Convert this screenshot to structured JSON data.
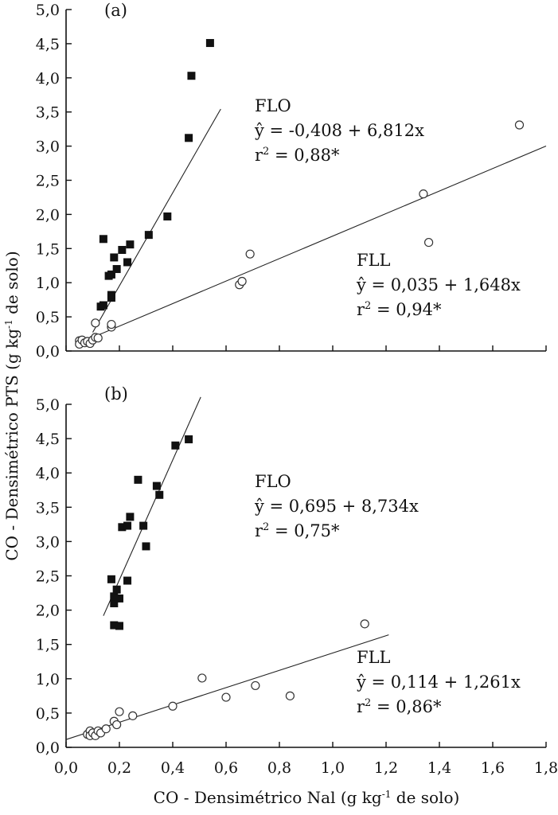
{
  "axes": {
    "ylabel": "CO - Densimétrico PTS (g kg-1 de solo)",
    "ylabel_parts": {
      "pre": "CO - Densimétrico PTS (g kg",
      "sup": "-1",
      "post": " de solo)"
    },
    "xlabel_parts": {
      "pre": "CO - Densimétrico Nal (g kg",
      "sup": "-1",
      "post": " de solo)"
    },
    "xticks": [
      "0,0",
      "0,2",
      "0,4",
      "0,6",
      "0,8",
      "1,0",
      "1,2",
      "1,4",
      "1,6",
      "1,8"
    ],
    "yticks": [
      "0,0",
      "0,5",
      "1,0",
      "1,5",
      "2,0",
      "2,5",
      "3,0",
      "3,5",
      "4,0",
      "4,5",
      "5,0"
    ]
  },
  "chart_data": [
    {
      "type": "scatter",
      "panel_label": "(a)",
      "xlabel": "CO - Densimétrico Nal (g kg-1 de solo)",
      "ylabel": "CO - Densimétrico PTS (g kg-1 de solo)",
      "xlim": [
        0,
        1.8
      ],
      "ylim": [
        0,
        5
      ],
      "series": [
        {
          "name": "FLO",
          "marker": "filled-square",
          "equation": "ŷ = -0,408 + 6,812x",
          "r2_label": "r² = 0,88*",
          "r2_parts": {
            "pre": "r",
            "sup": "2",
            "post": " = 0,88*"
          },
          "fit": {
            "intercept": -0.408,
            "slope": 6.812,
            "x_range": [
              0.1,
              0.58
            ]
          },
          "points": [
            [
              0.14,
              1.64
            ],
            [
              0.13,
              0.65
            ],
            [
              0.14,
              0.67
            ],
            [
              0.16,
              1.1
            ],
            [
              0.17,
              1.12
            ],
            [
              0.17,
              0.78
            ],
            [
              0.17,
              0.82
            ],
            [
              0.18,
              1.37
            ],
            [
              0.19,
              1.2
            ],
            [
              0.21,
              1.48
            ],
            [
              0.23,
              1.3
            ],
            [
              0.24,
              1.56
            ],
            [
              0.31,
              1.7
            ],
            [
              0.38,
              1.97
            ],
            [
              0.46,
              3.12
            ],
            [
              0.47,
              4.03
            ],
            [
              0.54,
              4.51
            ]
          ]
        },
        {
          "name": "FLL",
          "marker": "open-circle",
          "equation": "ŷ = 0,035 + 1,648x",
          "r2_label": "r² = 0,94*",
          "r2_parts": {
            "pre": "r",
            "sup": "2",
            "post": " = 0,94*"
          },
          "fit": {
            "intercept": 0.035,
            "slope": 1.648,
            "x_range": [
              0.05,
              1.8
            ]
          },
          "points": [
            [
              0.05,
              0.15
            ],
            [
              0.05,
              0.1
            ],
            [
              0.06,
              0.16
            ],
            [
              0.07,
              0.12
            ],
            [
              0.08,
              0.14
            ],
            [
              0.09,
              0.11
            ],
            [
              0.1,
              0.16
            ],
            [
              0.11,
              0.2
            ],
            [
              0.12,
              0.19
            ],
            [
              0.11,
              0.41
            ],
            [
              0.17,
              0.35
            ],
            [
              0.17,
              0.39
            ],
            [
              0.65,
              0.97
            ],
            [
              0.66,
              1.02
            ],
            [
              0.69,
              1.42
            ],
            [
              1.34,
              2.3
            ],
            [
              1.36,
              1.59
            ],
            [
              1.7,
              3.31
            ]
          ]
        }
      ]
    },
    {
      "type": "scatter",
      "panel_label": "(b)",
      "xlabel": "CO - Densimétrico Nal (g kg-1 de solo)",
      "ylabel": "CO - Densimétrico PTS (g kg-1 de solo)",
      "xlim": [
        0,
        1.8
      ],
      "ylim": [
        0,
        5
      ],
      "series": [
        {
          "name": "FLO",
          "marker": "filled-square",
          "equation": "ŷ = 0,695 + 8,734x",
          "r2_label": "r² = 0,75*",
          "r2_parts": {
            "pre": "r",
            "sup": "2",
            "post": " = 0,75*"
          },
          "fit": {
            "intercept": 0.695,
            "slope": 8.734,
            "x_range": [
              0.14,
              0.505
            ]
          },
          "points": [
            [
              0.17,
              2.45
            ],
            [
              0.18,
              2.1
            ],
            [
              0.18,
              2.2
            ],
            [
              0.18,
              1.78
            ],
            [
              0.19,
              2.3
            ],
            [
              0.2,
              2.17
            ],
            [
              0.2,
              1.77
            ],
            [
              0.21,
              3.21
            ],
            [
              0.23,
              2.43
            ],
            [
              0.23,
              3.23
            ],
            [
              0.24,
              3.36
            ],
            [
              0.27,
              3.9
            ],
            [
              0.29,
              3.23
            ],
            [
              0.3,
              2.93
            ],
            [
              0.34,
              3.81
            ],
            [
              0.35,
              3.68
            ],
            [
              0.41,
              4.4
            ],
            [
              0.46,
              4.49
            ]
          ]
        },
        {
          "name": "FLL",
          "marker": "open-circle",
          "equation": "ŷ = 0,114 + 1,261x",
          "r2_label": "r² = 0,86*",
          "r2_parts": {
            "pre": "r",
            "sup": "2",
            "post": " = 0,86*"
          },
          "fit": {
            "intercept": 0.114,
            "slope": 1.261,
            "x_range": [
              0,
              1.21
            ]
          },
          "points": [
            [
              0.08,
              0.19
            ],
            [
              0.09,
              0.24
            ],
            [
              0.09,
              0.17
            ],
            [
              0.1,
              0.21
            ],
            [
              0.11,
              0.17
            ],
            [
              0.12,
              0.24
            ],
            [
              0.13,
              0.21
            ],
            [
              0.15,
              0.27
            ],
            [
              0.18,
              0.38
            ],
            [
              0.19,
              0.33
            ],
            [
              0.2,
              0.52
            ],
            [
              0.25,
              0.46
            ],
            [
              0.4,
              0.6
            ],
            [
              0.51,
              1.01
            ],
            [
              0.6,
              0.73
            ],
            [
              0.71,
              0.9
            ],
            [
              0.84,
              0.75
            ],
            [
              1.12,
              1.8
            ]
          ]
        }
      ]
    }
  ]
}
